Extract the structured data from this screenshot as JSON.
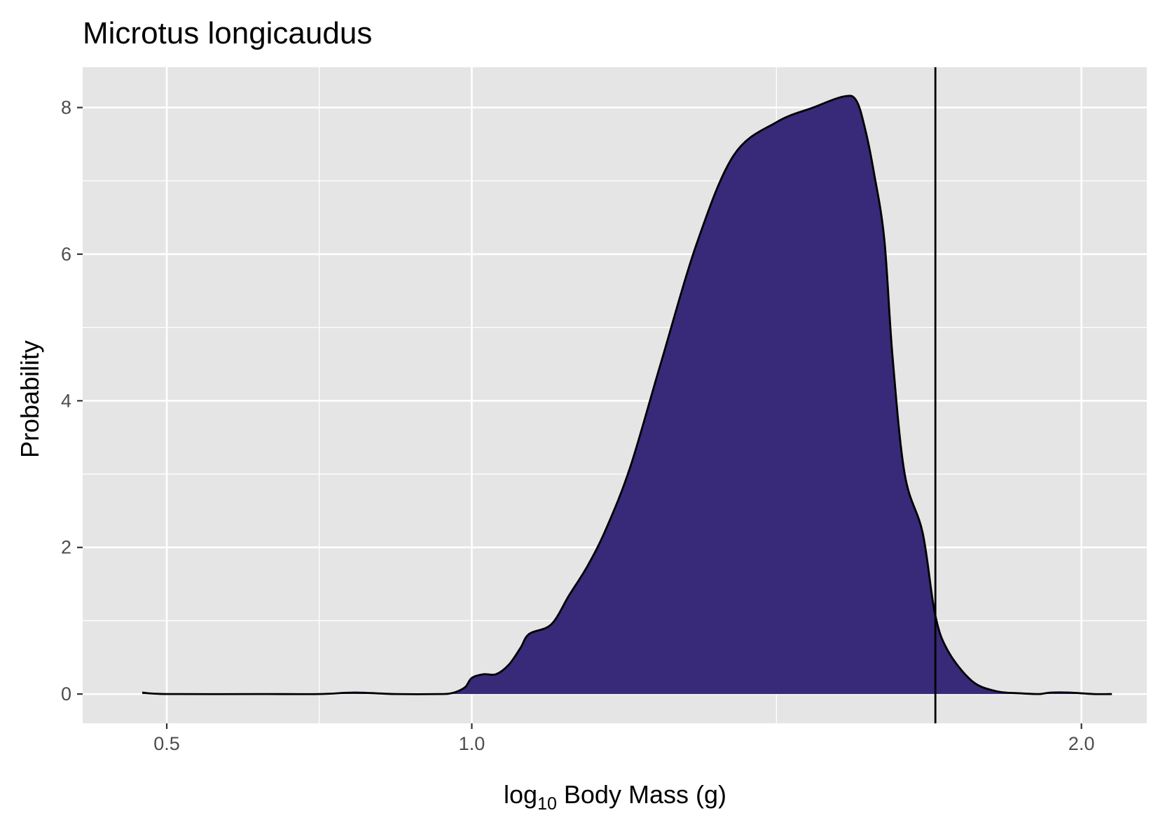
{
  "chart_data": {
    "type": "area",
    "title": "Microtus longicaudus",
    "xlabel": {
      "prefix": "log",
      "subscript": "10",
      "suffix": " Body Mass (g)"
    },
    "ylabel": "Probability",
    "x_scale": "log10",
    "xlim": [
      2.3,
      128
    ],
    "ylim": [
      -0.4,
      8.55
    ],
    "x_ticks": [
      {
        "value": 3.16,
        "label": "0.5"
      },
      {
        "value": 10,
        "label": "1.0"
      },
      {
        "value": 100,
        "label": "2.0"
      }
    ],
    "y_ticks": [
      {
        "value": 0,
        "label": "0"
      },
      {
        "value": 2,
        "label": "2"
      },
      {
        "value": 4,
        "label": "4"
      },
      {
        "value": 6,
        "label": "6"
      },
      {
        "value": 8,
        "label": "8"
      }
    ],
    "x_minor_breaks": [
      1.78,
      5.62,
      31.6
    ],
    "y_minor_breaks": [
      1,
      3,
      5,
      7
    ],
    "grid": true,
    "reference_line_x": 57.6,
    "fill_color": "#382A78",
    "panel_color": "#E5E5E5",
    "series": [
      {
        "x": [
          2.88,
          3.16,
          4.47,
          5.62,
          6.42,
          7.5,
          8.91,
          9.24,
          9.5,
          9.77,
          10.0,
          10.45,
          10.96,
          11.5,
          12.02,
          12.42,
          13.5,
          14.45,
          15.49,
          16.6,
          18.2,
          20.4,
          23.4,
          26.9,
          31.6,
          36.3,
          40.7,
          42.7,
          44.2,
          45.7,
          47.5,
          49.0,
          51.3,
          54.9,
          57.5,
          60.3,
          66.1,
          72.4,
          79.4,
          85.1,
          89.1,
          95.5,
          104.7,
          112.2
        ],
        "y": [
          0.02,
          0.0,
          0.0,
          0.0,
          0.02,
          0.0,
          0.0,
          0.01,
          0.04,
          0.1,
          0.22,
          0.27,
          0.27,
          0.4,
          0.63,
          0.82,
          0.95,
          1.35,
          1.75,
          2.25,
          3.1,
          4.5,
          6.15,
          7.35,
          7.8,
          8.0,
          8.15,
          8.1,
          7.7,
          7.1,
          6.2,
          4.6,
          3.0,
          2.2,
          1.1,
          0.6,
          0.18,
          0.04,
          0.01,
          0.0,
          0.02,
          0.02,
          0.0,
          0.0
        ]
      }
    ]
  }
}
